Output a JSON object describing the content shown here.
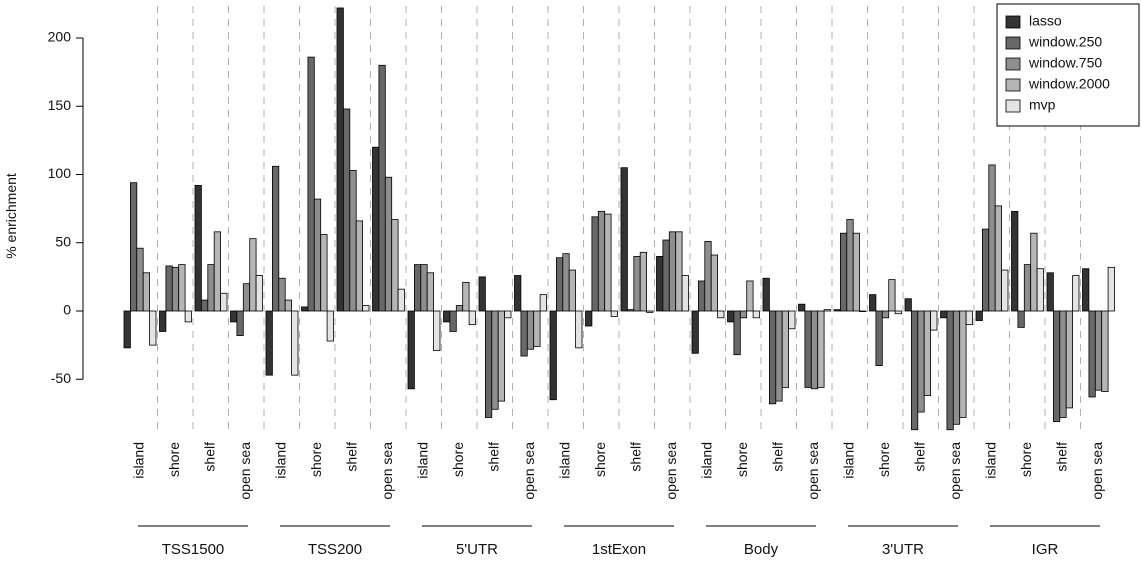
{
  "chart_data": {
    "type": "bar",
    "ylabel": "% enrichment",
    "ylim": [
      -90,
      222
    ],
    "yticks": [
      -50,
      0,
      50,
      100,
      150,
      200
    ],
    "grid": false,
    "legend_position": "top-right",
    "groups": [
      "TSS1500",
      "TSS200",
      "5'UTR",
      "1stExon",
      "Body",
      "3'UTR",
      "IGR"
    ],
    "subcategories": [
      "island",
      "shore",
      "shelf",
      "open sea"
    ],
    "series": [
      {
        "name": "lasso",
        "color": "#333333"
      },
      {
        "name": "window.250",
        "color": "#686868"
      },
      {
        "name": "window.750",
        "color": "#8e8e8e"
      },
      {
        "name": "window.2000",
        "color": "#b5b5b5"
      },
      {
        "name": "mvp",
        "color": "#e4e4e4"
      }
    ],
    "values": [
      [
        [
          -27,
          94,
          46,
          28,
          -25
        ],
        [
          -15,
          33,
          32,
          34,
          -8
        ],
        [
          92,
          8,
          34,
          58,
          13
        ],
        [
          -8,
          -18,
          20,
          53,
          26
        ]
      ],
      [
        [
          -47,
          106,
          24,
          8,
          -47
        ],
        [
          3,
          186,
          82,
          56,
          -22
        ],
        [
          222,
          148,
          103,
          66,
          4
        ],
        [
          120,
          180,
          98,
          67,
          16
        ]
      ],
      [
        [
          -57,
          34,
          34,
          28,
          -29
        ],
        [
          -8,
          -15,
          4,
          21,
          -10
        ],
        [
          25,
          -78,
          -72,
          -66,
          -5
        ],
        [
          26,
          -33,
          -28,
          -26,
          12
        ]
      ],
      [
        [
          -65,
          39,
          42,
          30,
          -27
        ],
        [
          -11,
          69,
          73,
          71,
          -4
        ],
        [
          105,
          1,
          40,
          43,
          -1
        ],
        [
          40,
          52,
          58,
          58,
          26
        ]
      ],
      [
        [
          -31,
          22,
          51,
          41,
          -5
        ],
        [
          -8,
          -32,
          -5,
          22,
          -5
        ],
        [
          24,
          -68,
          -66,
          -56,
          -13
        ],
        [
          5,
          -56,
          -57,
          -56,
          1
        ]
      ],
      [
        [
          1,
          57,
          67,
          57,
          0
        ],
        [
          12,
          -40,
          -5,
          23,
          -2
        ],
        [
          9,
          -87,
          -74,
          -62,
          -14
        ],
        [
          -5,
          -87,
          -83,
          -78,
          -10
        ]
      ],
      [
        [
          -7,
          60,
          107,
          77,
          30
        ],
        [
          73,
          -12,
          34,
          57,
          31
        ],
        [
          28,
          -81,
          -78,
          -71,
          26
        ],
        [
          31,
          -63,
          -58,
          -59,
          32
        ]
      ]
    ]
  },
  "colors": {
    "divider": "#b0b0b0",
    "axis": "#000000",
    "bar_stroke": "#000000"
  }
}
